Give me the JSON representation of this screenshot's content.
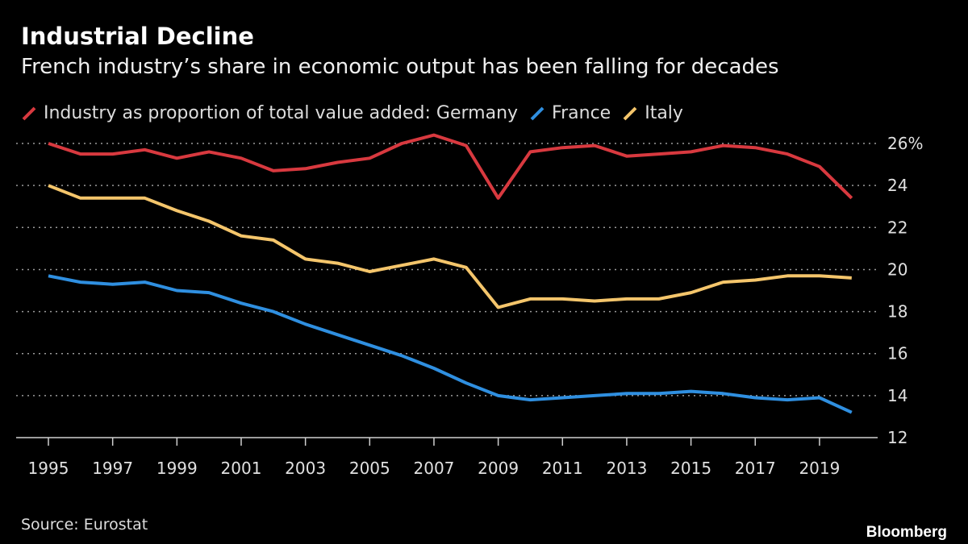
{
  "title": "Industrial Decline",
  "subtitle": "French industry’s share in economic output has been falling for decades",
  "source": "Source: Eurostat",
  "logo": "Bloomberg",
  "legend": {
    "prefix": "Industry as proportion of total value added:",
    "items": [
      "Germany",
      "France",
      "Italy"
    ]
  },
  "chart_data": {
    "type": "line",
    "title": "Industrial Decline",
    "subtitle": "French industry’s share in economic output has been falling for decades",
    "x": [
      1995,
      1996,
      1997,
      1998,
      1999,
      2000,
      2001,
      2002,
      2003,
      2004,
      2005,
      2006,
      2007,
      2008,
      2009,
      2010,
      2011,
      2012,
      2013,
      2014,
      2015,
      2016,
      2017,
      2018,
      2019,
      2020
    ],
    "xticks": [
      "1995",
      "1997",
      "1999",
      "2001",
      "2003",
      "2005",
      "2007",
      "2009",
      "2011",
      "2013",
      "2015",
      "2017",
      "2019"
    ],
    "yticks": [
      "12",
      "14",
      "16",
      "18",
      "20",
      "22",
      "24",
      "26%"
    ],
    "ylim": [
      12,
      26
    ],
    "grid": true,
    "y_axis_side": "right",
    "legend_placement": "top",
    "series": [
      {
        "name": "Germany",
        "color": "#d8393f",
        "values": [
          26.0,
          25.5,
          25.5,
          25.7,
          25.3,
          25.6,
          25.3,
          24.7,
          24.8,
          25.1,
          25.3,
          26.0,
          26.4,
          25.9,
          23.4,
          25.6,
          25.8,
          25.9,
          25.4,
          25.5,
          25.6,
          25.9,
          25.8,
          25.5,
          24.9,
          23.4
        ]
      },
      {
        "name": "France",
        "color": "#2f8fe0",
        "values": [
          19.7,
          19.4,
          19.3,
          19.4,
          19.0,
          18.9,
          18.4,
          18.0,
          17.4,
          16.9,
          16.4,
          15.9,
          15.3,
          14.6,
          14.0,
          13.8,
          13.9,
          14.0,
          14.1,
          14.1,
          14.2,
          14.1,
          13.9,
          13.8,
          13.9,
          13.2
        ]
      },
      {
        "name": "Italy",
        "color": "#f4c56b",
        "values": [
          24.0,
          23.4,
          23.4,
          23.4,
          22.8,
          22.3,
          21.6,
          21.4,
          20.5,
          20.3,
          19.9,
          20.2,
          20.5,
          20.1,
          18.2,
          18.6,
          18.6,
          18.5,
          18.6,
          18.6,
          18.9,
          19.4,
          19.5,
          19.7,
          19.7,
          19.6
        ]
      }
    ]
  }
}
